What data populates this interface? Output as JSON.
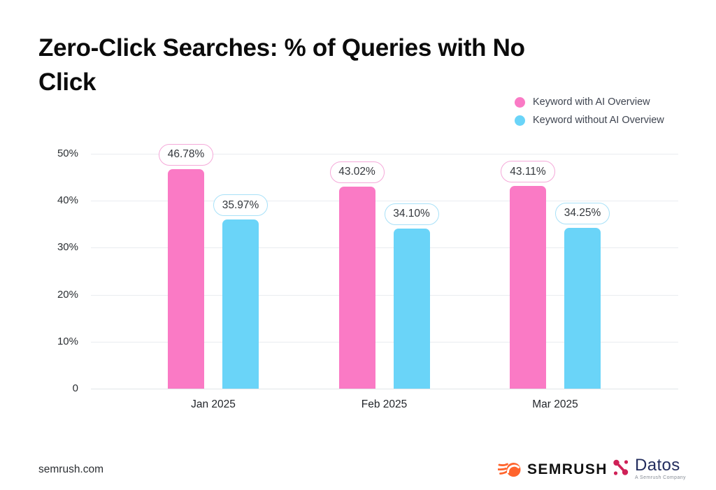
{
  "chart_data": {
    "type": "bar",
    "title": "Zero-Click Searches: % of Queries with No Click",
    "categories": [
      "Jan 2025",
      "Feb 2025",
      "Mar 2025"
    ],
    "series": [
      {
        "name": "Keyword with AI Overview",
        "color": "#FA7AC5",
        "pill_border_color": "#F5A9D9",
        "values": [
          46.78,
          43.02,
          43.11
        ],
        "labels": [
          "46.78%",
          "43.02%",
          "43.11%"
        ]
      },
      {
        "name": "Keyword without AI Overview",
        "color": "#6AD4F8",
        "pill_border_color": "#A8E1F8",
        "values": [
          35.97,
          34.1,
          34.25
        ],
        "labels": [
          "35.97%",
          "34.10%",
          "34.25%"
        ]
      }
    ],
    "xlabel": "",
    "ylabel": "",
    "ylim": [
      0,
      50
    ],
    "y_ticks": [
      "50%",
      "40%",
      "30%",
      "20%",
      "10%",
      "0"
    ],
    "y_tick_values": [
      50,
      40,
      30,
      20,
      10,
      0
    ],
    "grid": "horizontal",
    "legend_position": "top-right",
    "data_labels_shown": true
  },
  "footer": {
    "site": "semrush.com",
    "semrush_logo_text": "SEMRUSH",
    "datos_logo_text": "Datos",
    "datos_tagline": "A Semrush Company"
  },
  "colors": {
    "background": "#ffffff",
    "title_text": "#0b0b0b",
    "axis_text": "#2b2f33",
    "legend_text": "#3e4450",
    "gridline": "#e9ecf0",
    "pill_text": "#33373c",
    "semrush_orange": "#FF642D",
    "semrush_black": "#121212",
    "datos_red": "#CF2157",
    "datos_navy": "#232D5E"
  }
}
